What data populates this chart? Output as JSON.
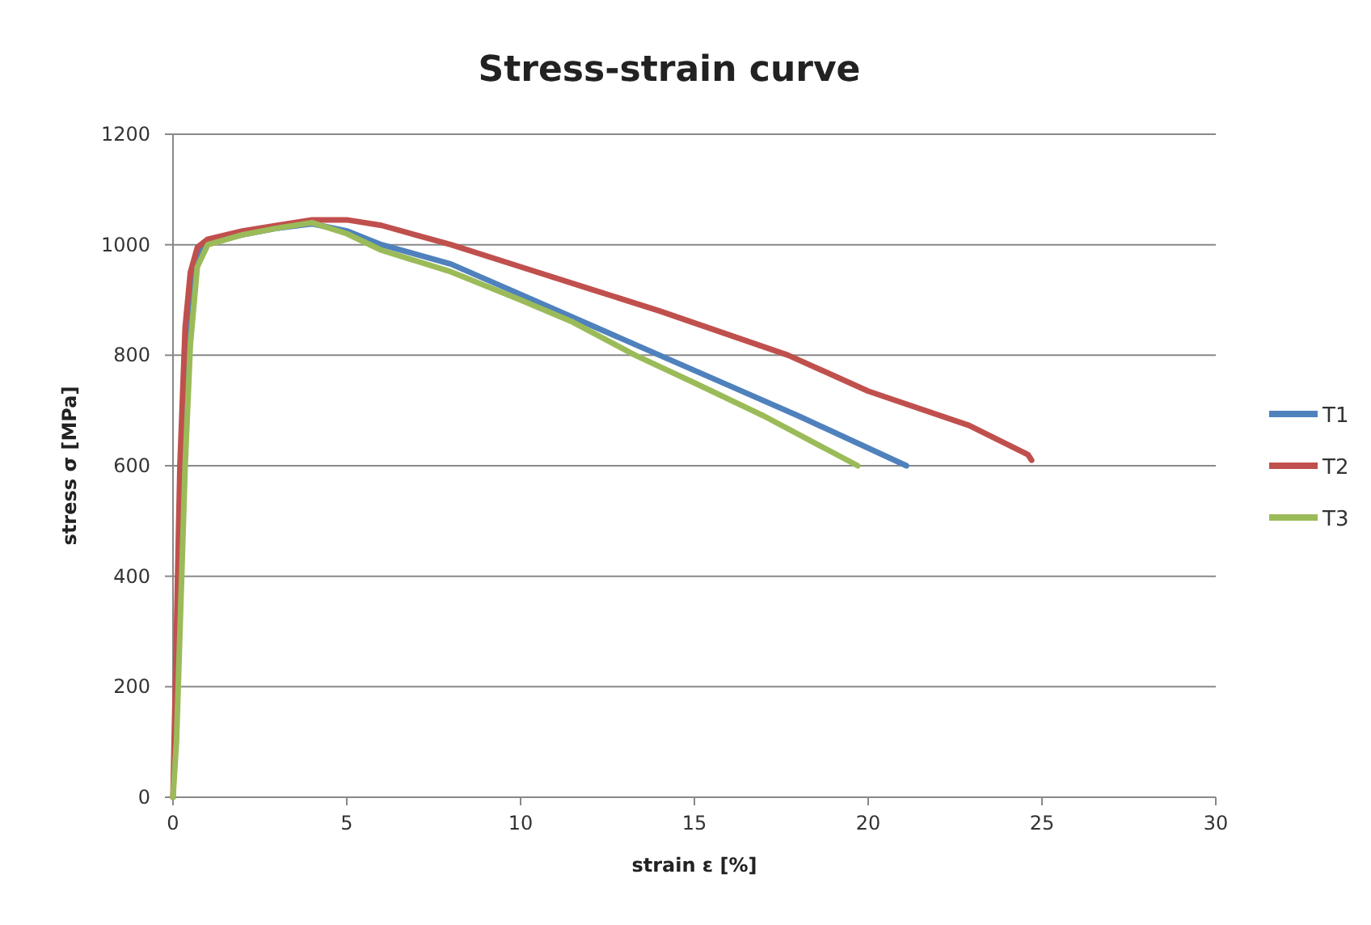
{
  "chart_data": {
    "type": "line",
    "title": "Stress-strain curve",
    "xlabel": "strain ε [%]",
    "ylabel": "stress σ [MPa]",
    "xlim": [
      0,
      30
    ],
    "xticks": [
      0,
      5,
      10,
      15,
      20,
      25,
      30
    ],
    "ylim": [
      0,
      1200
    ],
    "yticks": [
      0,
      200,
      400,
      600,
      800,
      1000,
      1200
    ],
    "grid": "y",
    "legend": "right",
    "marker": "none",
    "line_style": "solid",
    "series": [
      {
        "name": "T1",
        "color": "#4f81bd",
        "x": [
          0.3,
          0.45,
          0.6,
          0.8,
          1,
          2,
          3,
          4,
          5,
          6,
          8,
          10,
          12,
          14,
          16,
          18,
          21.1
        ],
        "values": [
          600,
          820,
          950,
          995,
          1005,
          1018,
          1030,
          1038,
          1025,
          1000,
          965,
          910,
          855,
          800,
          745,
          690,
          600
        ]
      },
      {
        "name": "T2",
        "color": "#c0504d",
        "x": [
          0,
          0.1,
          0.2,
          0.35,
          0.5,
          0.7,
          1,
          2,
          3,
          4,
          5,
          6,
          8,
          10,
          12,
          14,
          17.7,
          20,
          22.9,
          24.6,
          24.7
        ],
        "values": [
          0,
          300,
          600,
          850,
          950,
          995,
          1010,
          1025,
          1035,
          1045,
          1045,
          1035,
          1000,
          960,
          920,
          880,
          800,
          735,
          673,
          620,
          610
        ]
      },
      {
        "name": "T3",
        "color": "#9bbb59",
        "x": [
          0,
          0.1,
          0.2,
          0.35,
          0.5,
          0.7,
          1,
          2,
          3,
          4,
          5,
          6,
          8,
          10,
          11.5,
          13.3,
          15,
          17,
          19.7
        ],
        "values": [
          0,
          100,
          300,
          600,
          820,
          960,
          1000,
          1018,
          1030,
          1040,
          1020,
          990,
          951,
          900,
          860,
          800,
          750,
          690,
          600
        ]
      }
    ]
  }
}
